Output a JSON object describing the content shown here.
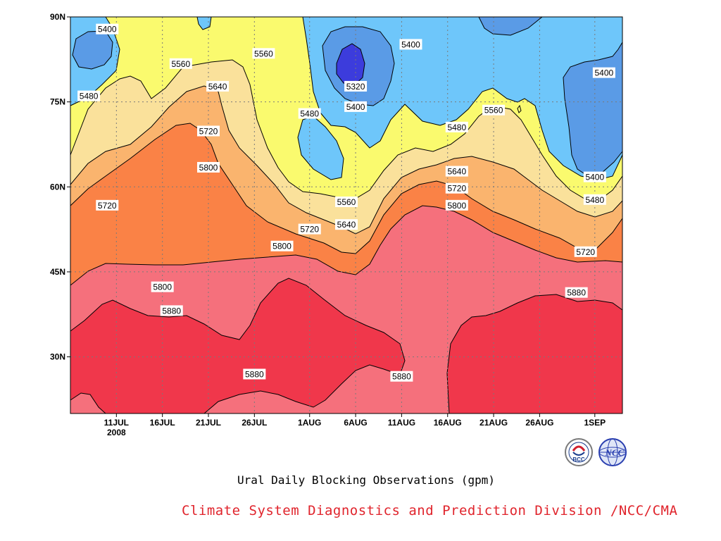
{
  "chart_data": {
    "type": "heatmap",
    "subtype": "filled-contour",
    "title": "Ural Daily Blocking Observations (gpm)",
    "x_axis": {
      "ticks": [
        "11JUL",
        "16JUL",
        "21JUL",
        "26JUL",
        "1AUG",
        "6AUG",
        "11AUG",
        "16AUG",
        "21AUG",
        "26AUG",
        "1SEP"
      ],
      "year_label": "2008",
      "range": [
        "2008-07-06",
        "2008-09-04"
      ]
    },
    "y_axis": {
      "ticks": [
        "30N",
        "45N",
        "60N",
        "75N",
        "90N"
      ],
      "range_deg": [
        20,
        90
      ]
    },
    "grid": true,
    "contour_levels": [
      5320,
      5400,
      5480,
      5560,
      5640,
      5720,
      5800,
      5880
    ],
    "fill_colors": {
      "below_5320": "#3c3cdc",
      "5320_5400": "#5a9be6",
      "5400_5480": "#6ec6fa",
      "5480_5560": "#fafa6e",
      "5560_5640": "#fae19b",
      "5640_5720": "#fab46e",
      "5720_5800": "#fa8246",
      "5800_5880": "#f5707c",
      "above_5880": "#f0374b"
    },
    "contour_labels": [
      {
        "text": "5400",
        "date": "2008-07-10",
        "lat": 87.8
      },
      {
        "text": "5560",
        "date": "2008-07-18",
        "lat": 81.7
      },
      {
        "text": "5560",
        "date": "2008-07-27",
        "lat": 83.5
      },
      {
        "text": "5480",
        "date": "2008-07-08",
        "lat": 76.0
      },
      {
        "text": "5640",
        "date": "2008-07-22",
        "lat": 77.7
      },
      {
        "text": "5720",
        "date": "2008-07-21",
        "lat": 69.8
      },
      {
        "text": "5800",
        "date": "2008-07-21",
        "lat": 63.4
      },
      {
        "text": "5720",
        "date": "2008-07-10",
        "lat": 56.7
      },
      {
        "text": "5480",
        "date": "2008-08-01",
        "lat": 72.9
      },
      {
        "text": "5400",
        "date": "2008-08-12",
        "lat": 85.1
      },
      {
        "text": "5320",
        "date": "2008-08-06",
        "lat": 77.7
      },
      {
        "text": "5400",
        "date": "2008-08-06",
        "lat": 74.1
      },
      {
        "text": "5480",
        "date": "2008-08-17",
        "lat": 70.5
      },
      {
        "text": "5560",
        "date": "2008-08-21",
        "lat": 73.5
      },
      {
        "text": "5400",
        "date": "2008-09-02",
        "lat": 80.1
      },
      {
        "text": "5400",
        "date": "2008-09-01",
        "lat": 61.7
      },
      {
        "text": "5480",
        "date": "2008-09-01",
        "lat": 57.7
      },
      {
        "text": "5560",
        "date": "2008-08-05",
        "lat": 57.3
      },
      {
        "text": "5640",
        "date": "2008-08-05",
        "lat": 53.3
      },
      {
        "text": "5720",
        "date": "2008-08-01",
        "lat": 52.5
      },
      {
        "text": "5640",
        "date": "2008-08-17",
        "lat": 62.7
      },
      {
        "text": "5720",
        "date": "2008-08-17",
        "lat": 59.7
      },
      {
        "text": "5800",
        "date": "2008-08-17",
        "lat": 56.7
      },
      {
        "text": "5800",
        "date": "2008-07-29",
        "lat": 49.5
      },
      {
        "text": "5720",
        "date": "2008-08-31",
        "lat": 48.5
      },
      {
        "text": "5800",
        "date": "2008-07-16",
        "lat": 42.3
      },
      {
        "text": "5880",
        "date": "2008-07-17",
        "lat": 38.1
      },
      {
        "text": "5880",
        "date": "2008-08-30",
        "lat": 41.3
      },
      {
        "text": "5880",
        "date": "2008-07-26",
        "lat": 26.9
      },
      {
        "text": "5880",
        "date": "2008-08-11",
        "lat": 26.5
      }
    ]
  },
  "footer": {
    "credit": "Climate System Diagnostics and Prediction Division /NCC/CMA",
    "logo_left_text": "BCC",
    "logo_right_text": "NCC"
  }
}
